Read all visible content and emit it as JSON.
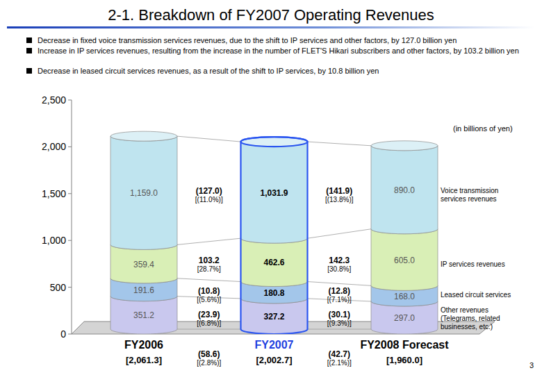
{
  "chart_data": {
    "type": "bar",
    "stacked": true,
    "data_labels": true,
    "legend": "right",
    "title": "2-1.  Breakdown of FY2007 Operating Revenues",
    "bullets": [
      "Decrease in fixed voice transmission services revenues, due to the shift to IP services and other factors, by 127.0 billion yen",
      "Increase in IP services revenues, resulting from the increase in the number of FLET'S Hikari subscribers and other factors, by 103.2 billion yen",
      "Decrease in leased circuit services revenues, as a result of the shift to IP services, by 10.8 billion yen"
    ],
    "unit_note": "(in billions of yen)",
    "page_number": "3",
    "categories": [
      "FY2006",
      "FY2007",
      "FY2008 Forecast"
    ],
    "totals": [
      2061.3,
      2002.7,
      1960.0
    ],
    "total_labels": [
      "[2,061.3]",
      "[2,002.7]",
      "[1,960.0]"
    ],
    "total_changes": [
      {
        "value": -58.6,
        "label": "(58.6)",
        "pct": -2.8,
        "pct_label": "[(2.8%)]"
      },
      {
        "value": -42.7,
        "label": "(42.7)",
        "pct": -2.1,
        "pct_label": "[(2.1%)]"
      }
    ],
    "ylim": [
      0,
      2500
    ],
    "yticks": [
      0,
      500,
      {
        "value": 1000,
        "label": "1,000"
      },
      {
        "value": 1500,
        "label": "1,500"
      },
      {
        "value": 2000,
        "label": "2,000"
      },
      {
        "value": 2500,
        "label": "2,500"
      }
    ],
    "series": [
      {
        "name": "Other revenues (Telegrams, related businesses, etc.)",
        "color": "#c9c8ee",
        "values": [
          351.2,
          327.2,
          297.0
        ],
        "value_labels": [
          "351.2",
          "327.2",
          "297.0"
        ],
        "changes": [
          {
            "value": -23.9,
            "label": "(23.9)",
            "pct": -6.8,
            "pct_label": "[(6.8%)]"
          },
          {
            "value": -30.1,
            "label": "(30.1)",
            "pct": -9.3,
            "pct_label": "[(9.3%)]"
          }
        ]
      },
      {
        "name": "Leased circuit services",
        "color": "#a3c6ea",
        "values": [
          191.6,
          180.8,
          168.0
        ],
        "value_labels": [
          "191.6",
          "180.8",
          "168.0"
        ],
        "changes": [
          {
            "value": -10.8,
            "label": "(10.8)",
            "pct": -5.6,
            "pct_label": "[(5.6%)]"
          },
          {
            "value": -12.8,
            "label": "(12.8)",
            "pct": -7.1,
            "pct_label": "[(7.1%)]"
          }
        ]
      },
      {
        "name": "IP services revenues",
        "color": "#d9efb6",
        "values": [
          359.4,
          462.6,
          605.0
        ],
        "value_labels": [
          "359.4",
          "462.6",
          "605.0"
        ],
        "changes": [
          {
            "value": 103.2,
            "label": "103.2",
            "pct": 28.7,
            "pct_label": "[28.7%]"
          },
          {
            "value": 142.3,
            "label": "142.3",
            "pct": 30.8,
            "pct_label": "[30.8%]"
          }
        ]
      },
      {
        "name": "Voice transmission services revenues",
        "color": "#bfe4ef",
        "values": [
          1159.0,
          1031.9,
          890.0
        ],
        "value_labels": [
          "1,159.0",
          "1,031.9",
          "890.0"
        ],
        "changes": [
          {
            "value": -127.0,
            "label": "(127.0)",
            "pct": -11.0,
            "pct_label": "[(11.0%)]"
          },
          {
            "value": -141.9,
            "label": "(141.9)",
            "pct": -13.8,
            "pct_label": "[(13.8%)]"
          }
        ]
      }
    ]
  }
}
